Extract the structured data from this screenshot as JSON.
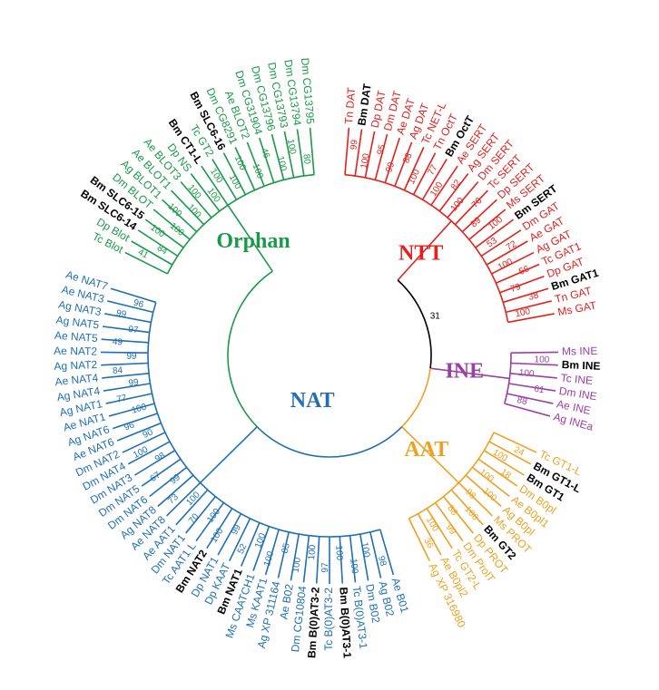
{
  "root_support": 31,
  "clades": [
    {
      "name": "NTT",
      "color": "#e3211c",
      "leaves": [
        {
          "label": "Tn DAT"
        },
        {
          "label": "Bm DAT",
          "bold": true
        },
        {
          "label": "Dp DAT"
        },
        {
          "label": "Dm DAT"
        },
        {
          "label": "Ae DAT"
        },
        {
          "label": "Ag DAT"
        },
        {
          "label": "Tc NET-L"
        },
        {
          "label": "Tn OctT"
        },
        {
          "label": "Bm OctT",
          "bold": true
        },
        {
          "label": "Ae SERT"
        },
        {
          "label": "Ag SERT"
        },
        {
          "label": "Dm SERT"
        },
        {
          "label": "Tc SERT"
        },
        {
          "label": "Dp SERT"
        },
        {
          "label": "Ms SERT"
        },
        {
          "label": "Bm SERT",
          "bold": true
        },
        {
          "label": "Dm GAT"
        },
        {
          "label": "Ae GAT"
        },
        {
          "label": "Ag GAT"
        },
        {
          "label": "Tc GAT1"
        },
        {
          "label": "Dp GAT"
        },
        {
          "label": "Bm GAT1",
          "bold": true
        },
        {
          "label": "Tn GAT"
        },
        {
          "label": "Ms GAT"
        }
      ],
      "supports": [
        99,
        100,
        95,
        99,
        88,
        100,
        77,
        100,
        82,
        100,
        70,
        89,
        100,
        53,
        72,
        100,
        56,
        79,
        38,
        100
      ]
    },
    {
      "name": "INE",
      "color": "#9b3fa5",
      "leaves": [
        {
          "label": "Ms INE"
        },
        {
          "label": "Bm INE",
          "bold": true
        },
        {
          "label": "Tc INE"
        },
        {
          "label": "Dm INE"
        },
        {
          "label": "Ae INE"
        },
        {
          "label": "Ag INEa"
        }
      ],
      "supports": [
        100,
        100,
        61,
        88
      ]
    },
    {
      "name": "AAT",
      "color": "#f0a020",
      "leaves": [
        {
          "label": "Tc GT1-L"
        },
        {
          "label": "Bm GT1-L",
          "bold": true
        },
        {
          "label": "Bm GT1",
          "bold": true
        },
        {
          "label": "Dm B0pl"
        },
        {
          "label": "Ae B0pl1"
        },
        {
          "label": "Ag B0pl"
        },
        {
          "label": "Ms PROT"
        },
        {
          "label": "Bm GT2",
          "bold": true
        },
        {
          "label": "Dp PROT"
        },
        {
          "label": "Dm ProlT"
        },
        {
          "label": "Tc GT2-L"
        },
        {
          "label": "Ae B0pl2"
        },
        {
          "label": "Ag XP 316980"
        }
      ],
      "supports": [
        24,
        100,
        18,
        100,
        100,
        98,
        100,
        88,
        99,
        100,
        36
      ]
    },
    {
      "name": "NAT",
      "color": "#1f6fb5",
      "leaves": [
        {
          "label": "Ae B01"
        },
        {
          "label": "Ag B02"
        },
        {
          "label": "Dm B02"
        },
        {
          "label": "Tc B(0)AT3-1"
        },
        {
          "label": "Bm B(0)AT3-1",
          "bold": true
        },
        {
          "label": "Tc B(0)AT3-2"
        },
        {
          "label": "Bm B(0)AT3-2",
          "bold": true
        },
        {
          "label": "Dm CG10804"
        },
        {
          "label": "Ae B02"
        },
        {
          "label": "Ag XP 311164"
        },
        {
          "label": "Ms KAAT1"
        },
        {
          "label": "Ms CAATCH1"
        },
        {
          "label": "Bm NAT1",
          "bold": true
        },
        {
          "label": "Dp KAAT"
        },
        {
          "label": "Dp NAT1"
        },
        {
          "label": "Bm NAT2",
          "bold": true
        },
        {
          "label": "Tc AAT1 L"
        },
        {
          "label": "Dm NAT1"
        },
        {
          "label": "Ae AAT1"
        },
        {
          "label": "Ae NAT8"
        },
        {
          "label": "Ag NAT8"
        },
        {
          "label": "Dm NAT6"
        },
        {
          "label": "Dm NAT5"
        },
        {
          "label": "Dm NAT3"
        },
        {
          "label": "Dm NAT4"
        },
        {
          "label": "Dm NAT2"
        },
        {
          "label": "Ae NAT6"
        },
        {
          "label": "Ag NAT6"
        },
        {
          "label": "Ae NAT1"
        },
        {
          "label": "Ag NAT1"
        },
        {
          "label": "Ag NAT4"
        },
        {
          "label": "Ae NAT4"
        },
        {
          "label": "Ag NAT2"
        },
        {
          "label": "Ae NAT2"
        },
        {
          "label": "Ae NAT5"
        },
        {
          "label": "Ag NAT5"
        },
        {
          "label": "Ag NAT3"
        },
        {
          "label": "Ae NAT3"
        },
        {
          "label": "Ae NAT7"
        }
      ],
      "supports": [
        98,
        100,
        100,
        100,
        97,
        100,
        100,
        85,
        100,
        100,
        52,
        99,
        100,
        100,
        70,
        100,
        73,
        99,
        67,
        98,
        100,
        90,
        96,
        100,
        77,
        99,
        84,
        99,
        49,
        97,
        99,
        96
      ]
    },
    {
      "name": "Orphan",
      "color": "#1a9a48",
      "leaves": [
        {
          "label": "Tc Blot"
        },
        {
          "label": "Dp Blot"
        },
        {
          "label": "Bm SLC6-14",
          "bold": true
        },
        {
          "label": "Bm SLC6-15",
          "bold": true
        },
        {
          "label": "Dm BLOT"
        },
        {
          "label": "Ag BLOT1"
        },
        {
          "label": "Ae BLOT1"
        },
        {
          "label": "Ae BLOT3"
        },
        {
          "label": "Dp NS"
        },
        {
          "label": "Bm CT1-L",
          "bold": true
        },
        {
          "label": "Tc GT2"
        },
        {
          "label": "Bm SLC6-16",
          "bold": true
        },
        {
          "label": "Dm CG8291"
        },
        {
          "label": "Ae BLOT2"
        },
        {
          "label": "Dm CG31904"
        },
        {
          "label": "Dm CG13796"
        },
        {
          "label": "Dm CG13793"
        },
        {
          "label": "Dm CG13794"
        },
        {
          "label": "Dm CG13795"
        }
      ],
      "supports": [
        41,
        84,
        100,
        100,
        100,
        100,
        100,
        100,
        100,
        100,
        100,
        100,
        46,
        100,
        100,
        80
      ]
    }
  ]
}
